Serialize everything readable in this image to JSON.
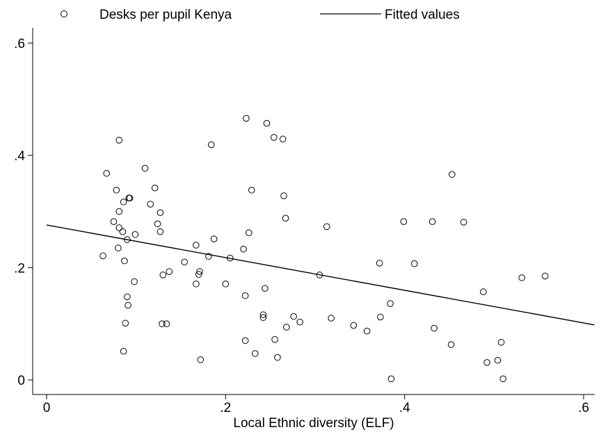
{
  "chart_data": {
    "type": "scatter",
    "xlabel": "Local Ethnic diversity (ELF)",
    "ylabel": "",
    "xlim": [
      0,
      0.62
    ],
    "ylim": [
      0,
      0.62
    ],
    "grid": false,
    "legend_position": "top",
    "x_ticks": [
      {
        "value": 0,
        "label": "0"
      },
      {
        "value": 0.2,
        "label": ".2"
      },
      {
        "value": 0.4,
        "label": ".4"
      },
      {
        "value": 0.6,
        "label": ".6"
      }
    ],
    "y_ticks": [
      {
        "value": 0,
        "label": "0"
      },
      {
        "value": 0.2,
        "label": ".2"
      },
      {
        "value": 0.4,
        "label": ".4"
      },
      {
        "value": 0.6,
        "label": ".6"
      }
    ],
    "legend": [
      {
        "label": "Desks per pupil Kenya",
        "marker": "hollow-circle"
      },
      {
        "label": "Fitted values",
        "marker": "line"
      }
    ],
    "series": [
      {
        "name": "Desks per pupil Kenya",
        "kind": "scatter",
        "points": [
          [
            0.067,
            0.368
          ],
          [
            0.063,
            0.221
          ],
          [
            0.075,
            0.282
          ],
          [
            0.078,
            0.338
          ],
          [
            0.081,
            0.427
          ],
          [
            0.081,
            0.3
          ],
          [
            0.081,
            0.271
          ],
          [
            0.08,
            0.235
          ],
          [
            0.085,
            0.264
          ],
          [
            0.086,
            0.317
          ],
          [
            0.087,
            0.212
          ],
          [
            0.09,
            0.25
          ],
          [
            0.092,
            0.324
          ],
          [
            0.093,
            0.324
          ],
          [
            0.09,
            0.148
          ],
          [
            0.091,
            0.133
          ],
          [
            0.088,
            0.101
          ],
          [
            0.086,
            0.051
          ],
          [
            0.099,
            0.259
          ],
          [
            0.098,
            0.175
          ],
          [
            0.11,
            0.377
          ],
          [
            0.116,
            0.313
          ],
          [
            0.121,
            0.342
          ],
          [
            0.124,
            0.278
          ],
          [
            0.127,
            0.298
          ],
          [
            0.127,
            0.264
          ],
          [
            0.13,
            0.187
          ],
          [
            0.137,
            0.193
          ],
          [
            0.129,
            0.1
          ],
          [
            0.134,
            0.1
          ],
          [
            0.154,
            0.21
          ],
          [
            0.167,
            0.24
          ],
          [
            0.17,
            0.188
          ],
          [
            0.171,
            0.193
          ],
          [
            0.167,
            0.171
          ],
          [
            0.172,
            0.036
          ],
          [
            0.181,
            0.22
          ],
          [
            0.184,
            0.419
          ],
          [
            0.187,
            0.251
          ],
          [
            0.2,
            0.171
          ],
          [
            0.205,
            0.217
          ],
          [
            0.22,
            0.233
          ],
          [
            0.223,
            0.466
          ],
          [
            0.222,
            0.15
          ],
          [
            0.222,
            0.07
          ],
          [
            0.226,
            0.262
          ],
          [
            0.229,
            0.338
          ],
          [
            0.233,
            0.047
          ],
          [
            0.242,
            0.116
          ],
          [
            0.242,
            0.111
          ],
          [
            0.244,
            0.163
          ],
          [
            0.246,
            0.457
          ],
          [
            0.254,
            0.432
          ],
          [
            0.255,
            0.072
          ],
          [
            0.258,
            0.04
          ],
          [
            0.264,
            0.429
          ],
          [
            0.265,
            0.328
          ],
          [
            0.267,
            0.288
          ],
          [
            0.268,
            0.094
          ],
          [
            0.276,
            0.113
          ],
          [
            0.283,
            0.103
          ],
          [
            0.305,
            0.187
          ],
          [
            0.313,
            0.273
          ],
          [
            0.318,
            0.11
          ],
          [
            0.343,
            0.097
          ],
          [
            0.358,
            0.087
          ],
          [
            0.372,
            0.208
          ],
          [
            0.373,
            0.112
          ],
          [
            0.384,
            0.136
          ],
          [
            0.385,
            0.002
          ],
          [
            0.399,
            0.282
          ],
          [
            0.411,
            0.207
          ],
          [
            0.431,
            0.282
          ],
          [
            0.433,
            0.092
          ],
          [
            0.452,
            0.063
          ],
          [
            0.453,
            0.366
          ],
          [
            0.466,
            0.281
          ],
          [
            0.488,
            0.157
          ],
          [
            0.492,
            0.031
          ],
          [
            0.504,
            0.035
          ],
          [
            0.508,
            0.067
          ],
          [
            0.51,
            0.002
          ],
          [
            0.531,
            0.182
          ],
          [
            0.557,
            0.185
          ]
        ]
      },
      {
        "name": "Fitted values",
        "kind": "line",
        "points": [
          [
            0,
            0.276
          ],
          [
            0.612,
            0.098
          ]
        ]
      }
    ]
  }
}
